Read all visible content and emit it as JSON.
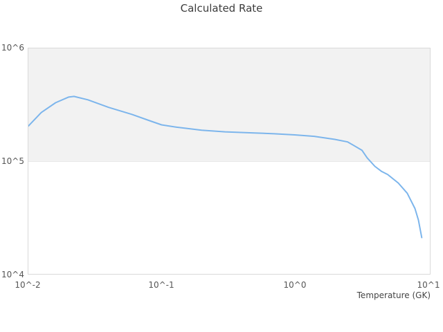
{
  "title": "Calculated Rate",
  "x_axis": {
    "title": "Temperature (GK)",
    "tick_labels": [
      "10^-2",
      "10^-1",
      "10^0",
      "10^1"
    ]
  },
  "y_axis": {
    "tick_labels": [
      "10^6",
      "10^5",
      "10^4"
    ]
  },
  "colors": {
    "line": "#7cb5ec",
    "band_fill": "#f2f2f2",
    "plot_border": "#d9d9d9",
    "title_text": "#3c3c3c",
    "tick_text": "#555555"
  },
  "chart_data": {
    "type": "line",
    "title": "Calculated Rate",
    "xlabel": "Temperature (GK)",
    "ylabel": "",
    "x_scale": "log",
    "y_scale": "log",
    "xlim": [
      0.01,
      10.35
    ],
    "ylim": [
      10000,
      1000000
    ],
    "x_tick_values": [
      0.01,
      0.1,
      1,
      10
    ],
    "y_tick_values": [
      1000000,
      100000,
      10000
    ],
    "shaded_band_y": [
      100000,
      1000000
    ],
    "grid": "off",
    "legend": "none",
    "series_color": "#7cb5ec",
    "x": [
      0.01,
      0.0125,
      0.016,
      0.02,
      0.022,
      0.028,
      0.04,
      0.06,
      0.08,
      0.1,
      0.13,
      0.2,
      0.3,
      0.5,
      0.7,
      1.0,
      1.4,
      2.0,
      2.5,
      3.2,
      3.5,
      4.0,
      4.5,
      5.0,
      6.0,
      7.0,
      8.0,
      8.5,
      9.0
    ],
    "y": [
      205000,
      270000,
      330000,
      370000,
      375000,
      350000,
      300000,
      260000,
      230000,
      210000,
      200000,
      188000,
      182000,
      178000,
      175000,
      171000,
      166000,
      156000,
      148000,
      125000,
      107000,
      90000,
      81000,
      76000,
      64000,
      52000,
      38000,
      30000,
      21000
    ]
  }
}
